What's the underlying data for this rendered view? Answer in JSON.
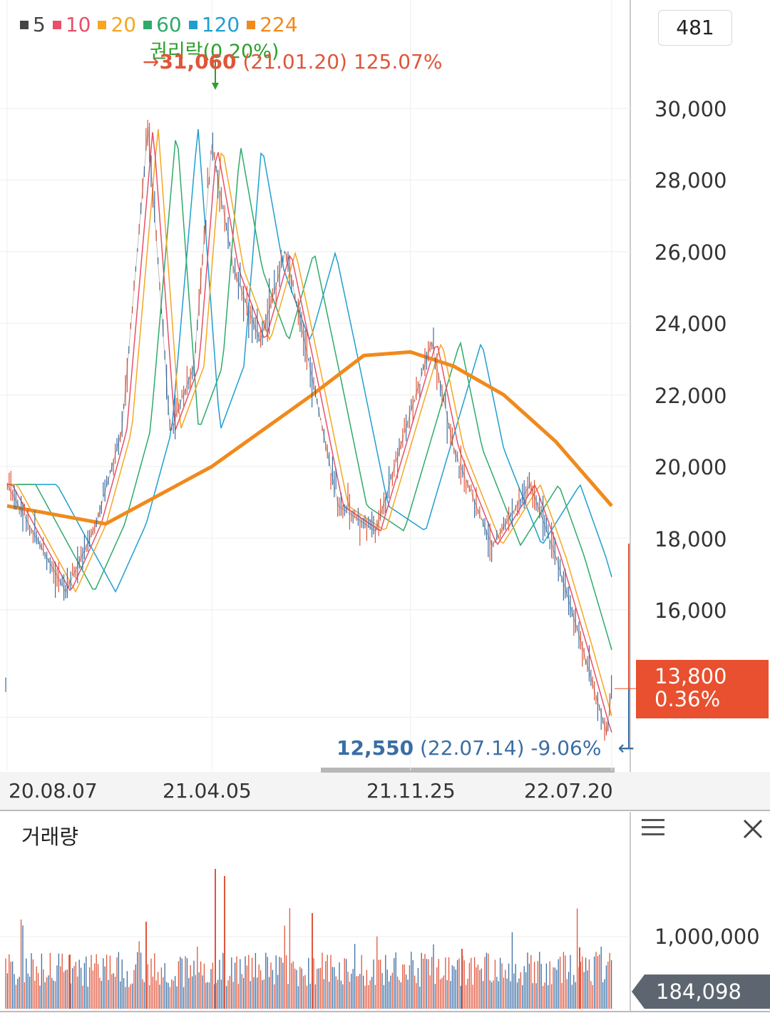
{
  "legend": [
    {
      "label": "5",
      "color": "#444444"
    },
    {
      "label": "10",
      "color": "#e8506a"
    },
    {
      "label": "20",
      "color": "#f5a623"
    },
    {
      "label": "60",
      "color": "#2eaa6a"
    },
    {
      "label": "120",
      "color": "#1f9fcf"
    },
    {
      "label": "224",
      "color": "#f08a1c"
    }
  ],
  "count_box": "481",
  "price_badge": {
    "price": "13,800",
    "change": "0.36%"
  },
  "annotations": {
    "high_arrow": "→",
    "high_price": "31,060",
    "high_detail": "(21.01.20) 125.07%",
    "rights": "권리락(0.20%)",
    "low_price": "12,550",
    "low_detail": "(22.07.14) -9.06%",
    "low_arrow": "←"
  },
  "volume_panel": {
    "title": "거래량",
    "ytick": "1,000,000",
    "current": "184,098",
    "menu_icon": "menu-icon",
    "close_icon": "close-icon"
  },
  "chart_data": {
    "type": "line",
    "title": "",
    "ylim": [
      11500,
      32500
    ],
    "yticks": [
      "30,000",
      "28,000",
      "26,000",
      "24,000",
      "22,000",
      "20,000",
      "18,000",
      "16,000"
    ],
    "ytick_values": [
      30000,
      28000,
      26000,
      24000,
      22000,
      20000,
      18000,
      16000
    ],
    "xticks": [
      "20.08.07",
      "21.04.05",
      "21.11.25",
      "22.07.20"
    ],
    "grid": true,
    "close_series": [
      {
        "date": "20.08.07",
        "value": 19500
      },
      {
        "date": "20.10.15",
        "value": 16500
      },
      {
        "date": "20.11.20",
        "value": 18400
      },
      {
        "date": "20.12.20",
        "value": 21000
      },
      {
        "date": "21.01.20",
        "value": 29500
      },
      {
        "date": "21.02.15",
        "value": 21000
      },
      {
        "date": "21.03.15",
        "value": 22800
      },
      {
        "date": "21.04.05",
        "value": 29000
      },
      {
        "date": "21.05.01",
        "value": 25500
      },
      {
        "date": "21.06.01",
        "value": 23500
      },
      {
        "date": "21.07.01",
        "value": 26000
      },
      {
        "date": "21.08.01",
        "value": 22500
      },
      {
        "date": "21.09.01",
        "value": 18900
      },
      {
        "date": "21.10.15",
        "value": 18200
      },
      {
        "date": "21.11.25",
        "value": 21500
      },
      {
        "date": "21.12.20",
        "value": 23500
      },
      {
        "date": "22.01.15",
        "value": 20500
      },
      {
        "date": "22.03.01",
        "value": 17800
      },
      {
        "date": "22.04.15",
        "value": 19500
      },
      {
        "date": "22.05.15",
        "value": 17500
      },
      {
        "date": "22.06.15",
        "value": 15000
      },
      {
        "date": "22.07.14",
        "value": 12550
      },
      {
        "date": "22.07.20",
        "value": 13800
      }
    ],
    "ma224": [
      {
        "date": "20.08.07",
        "value": 18900
      },
      {
        "date": "20.12.01",
        "value": 18400
      },
      {
        "date": "21.04.05",
        "value": 20000
      },
      {
        "date": "21.08.01",
        "value": 22000
      },
      {
        "date": "21.10.01",
        "value": 23100
      },
      {
        "date": "21.11.25",
        "value": 23200
      },
      {
        "date": "22.01.15",
        "value": 22800
      },
      {
        "date": "22.03.15",
        "value": 22000
      },
      {
        "date": "22.05.15",
        "value": 20700
      },
      {
        "date": "22.07.20",
        "value": 18900
      }
    ],
    "high": {
      "date": "21.01.20",
      "value": 31060
    },
    "low": {
      "date": "22.07.14",
      "value": 12550
    },
    "current": 13800,
    "volume": {
      "ytick": 1000000,
      "current": 184098
    }
  }
}
